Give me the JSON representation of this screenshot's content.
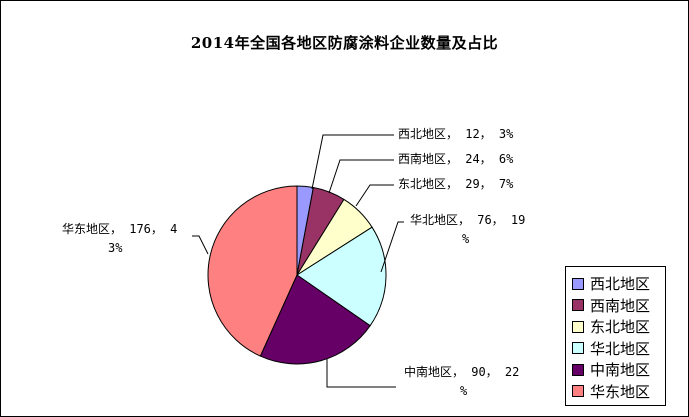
{
  "chart_data": {
    "type": "pie",
    "title": "2014年全国各地区防腐涂料企业数量及占比",
    "categories": [
      "西北地区",
      "西南地区",
      "东北地区",
      "华北地区",
      "中南地区",
      "华东地区"
    ],
    "values": [
      12,
      24,
      29,
      76,
      90,
      176
    ],
    "percents": [
      "3%",
      "6%",
      "7%",
      "19%",
      "22%",
      "43%"
    ],
    "colors": [
      "#9999ff",
      "#993366",
      "#ffffcc",
      "#ccffff",
      "#660066",
      "#ff8080"
    ],
    "label_separator": "，",
    "legend": "right-bottom"
  }
}
